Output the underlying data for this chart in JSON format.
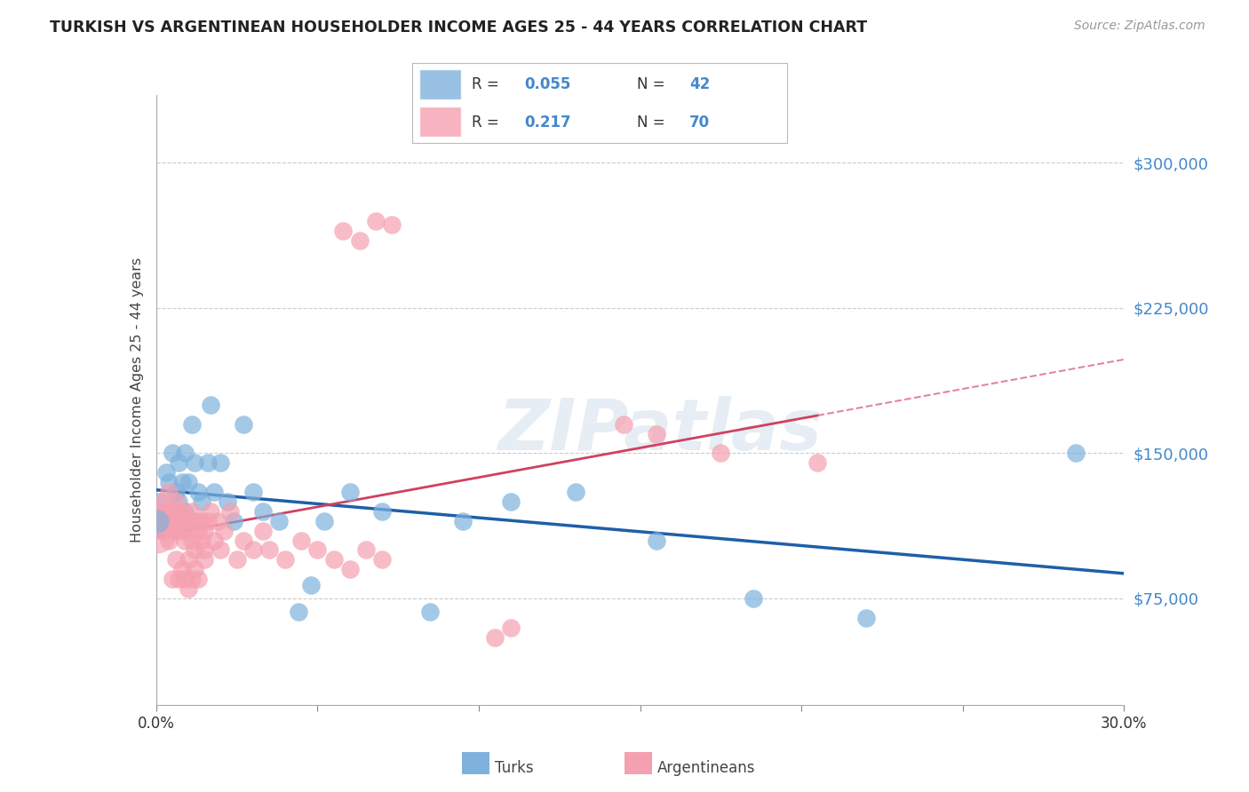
{
  "title": "TURKISH VS ARGENTINEAN HOUSEHOLDER INCOME AGES 25 - 44 YEARS CORRELATION CHART",
  "source": "Source: ZipAtlas.com",
  "ylabel": "Householder Income Ages 25 - 44 years",
  "ytick_values": [
    75000,
    150000,
    225000,
    300000
  ],
  "xmin": 0.0,
  "xmax": 0.3,
  "ymin": 20000,
  "ymax": 335000,
  "turks_color": "#7EB2DD",
  "argentineans_color": "#F5A0B0",
  "trend_turks_color": "#1E5FA8",
  "trend_arg_solid_color": "#D04060",
  "trend_arg_dash_color": "#E07090",
  "background_color": "#FFFFFF",
  "grid_color": "#CCCCCC",
  "title_color": "#222222",
  "axis_label_color": "#444444",
  "ytick_color": "#4488CC",
  "source_color": "#999999",
  "watermark_color": "#DDEEFF",
  "legend_r_color": "#333333",
  "legend_n_color": "#4488CC",
  "turks_x": [
    0.001,
    0.002,
    0.003,
    0.003,
    0.004,
    0.005,
    0.005,
    0.006,
    0.006,
    0.007,
    0.007,
    0.008,
    0.009,
    0.009,
    0.01,
    0.011,
    0.012,
    0.013,
    0.014,
    0.016,
    0.017,
    0.018,
    0.02,
    0.022,
    0.024,
    0.027,
    0.03,
    0.033,
    0.038,
    0.044,
    0.048,
    0.052,
    0.06,
    0.07,
    0.085,
    0.095,
    0.11,
    0.13,
    0.155,
    0.185,
    0.22,
    0.285
  ],
  "turks_y": [
    125000,
    110000,
    140000,
    115000,
    135000,
    150000,
    120000,
    130000,
    115000,
    145000,
    125000,
    135000,
    150000,
    120000,
    135000,
    165000,
    145000,
    130000,
    125000,
    145000,
    175000,
    130000,
    145000,
    125000,
    115000,
    165000,
    130000,
    120000,
    115000,
    68000,
    82000,
    115000,
    130000,
    120000,
    68000,
    115000,
    125000,
    130000,
    105000,
    75000,
    65000,
    150000
  ],
  "arg_x": [
    0.001,
    0.001,
    0.002,
    0.002,
    0.003,
    0.003,
    0.004,
    0.004,
    0.005,
    0.005,
    0.005,
    0.006,
    0.006,
    0.007,
    0.007,
    0.008,
    0.008,
    0.009,
    0.009,
    0.01,
    0.01,
    0.011,
    0.011,
    0.012,
    0.012,
    0.013,
    0.013,
    0.014,
    0.014,
    0.015,
    0.015,
    0.016,
    0.017,
    0.018,
    0.019,
    0.02,
    0.021,
    0.023,
    0.025,
    0.027,
    0.03,
    0.033,
    0.035,
    0.04,
    0.045,
    0.05,
    0.055,
    0.06,
    0.065,
    0.07,
    0.005,
    0.006,
    0.007,
    0.008,
    0.009,
    0.01,
    0.011,
    0.012,
    0.013,
    0.015,
    0.058,
    0.063,
    0.068,
    0.073,
    0.105,
    0.11,
    0.145,
    0.155,
    0.175,
    0.205
  ],
  "arg_y": [
    120000,
    115000,
    125000,
    110000,
    120000,
    115000,
    130000,
    105000,
    110000,
    120000,
    115000,
    125000,
    110000,
    120000,
    115000,
    110000,
    120000,
    105000,
    115000,
    95000,
    110000,
    120000,
    105000,
    115000,
    100000,
    110000,
    115000,
    105000,
    115000,
    100000,
    110000,
    115000,
    120000,
    105000,
    115000,
    100000,
    110000,
    120000,
    95000,
    105000,
    100000,
    110000,
    100000,
    95000,
    105000,
    100000,
    95000,
    90000,
    100000,
    95000,
    85000,
    95000,
    85000,
    90000,
    85000,
    80000,
    85000,
    90000,
    85000,
    95000,
    265000,
    260000,
    270000,
    268000,
    55000,
    60000,
    165000,
    160000,
    150000,
    145000
  ]
}
